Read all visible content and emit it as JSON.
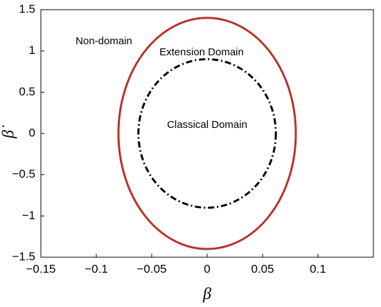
{
  "chart_data": {
    "type": "ellipse",
    "xlabel": "β",
    "ylabel": "β̇",
    "xlim": [
      -0.15,
      0.15
    ],
    "ylim": [
      -1.5,
      1.5
    ],
    "xticks": [
      {
        "value": -0.15,
        "label": "−0.15"
      },
      {
        "value": -0.1,
        "label": "−0.1"
      },
      {
        "value": -0.05,
        "label": "−0.05"
      },
      0,
      0.05,
      0.1
    ],
    "yticks": [
      {
        "value": -1.5,
        "label": "−1.5"
      },
      {
        "value": -1,
        "label": "−1"
      },
      {
        "value": -0.5,
        "label": "−0.5"
      },
      0,
      0.5,
      1,
      1.5
    ],
    "series": [
      {
        "color": "#b8302a",
        "linestyle": "solid",
        "center": [
          0,
          0
        ],
        "semi_axes": [
          0.08,
          1.4
        ]
      },
      {
        "color": "#000000",
        "linestyle": "dashdot",
        "center": [
          0,
          0
        ],
        "semi_axes": [
          0.062,
          0.9
        ]
      }
    ],
    "annotations": [
      "Non-domain",
      "Extension Domain",
      "Classical Domain"
    ]
  }
}
